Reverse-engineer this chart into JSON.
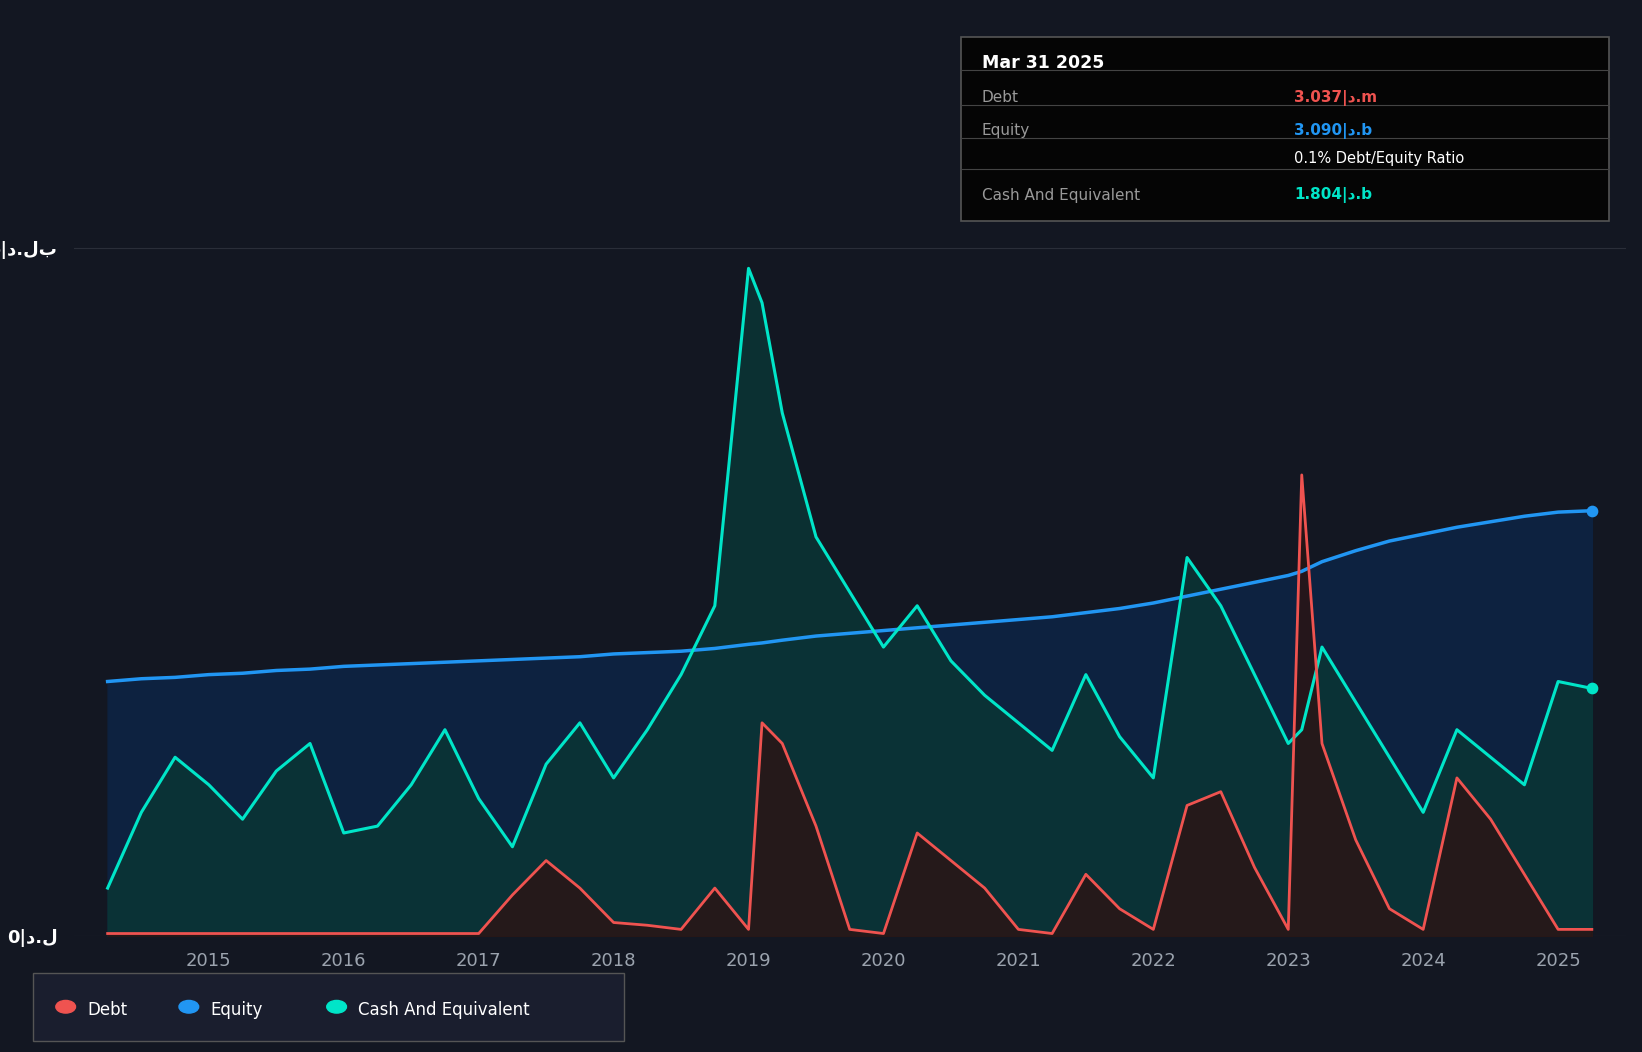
{
  "background_color": "#131722",
  "plot_bg_color": "#131722",
  "grid_color": "#2a2e39",
  "equity_color": "#2196F3",
  "debt_color": "#ef5350",
  "cash_color": "#00e5c8",
  "ylim": [
    0,
    5.5
  ],
  "times": [
    2014.25,
    2014.5,
    2014.75,
    2015.0,
    2015.25,
    2015.5,
    2015.75,
    2016.0,
    2016.25,
    2016.5,
    2016.75,
    2017.0,
    2017.25,
    2017.5,
    2017.75,
    2018.0,
    2018.25,
    2018.5,
    2018.75,
    2019.0,
    2019.1,
    2019.25,
    2019.5,
    2019.75,
    2020.0,
    2020.25,
    2020.5,
    2020.75,
    2021.0,
    2021.25,
    2021.5,
    2021.75,
    2022.0,
    2022.25,
    2022.5,
    2022.75,
    2023.0,
    2023.1,
    2023.25,
    2023.5,
    2023.75,
    2024.0,
    2024.25,
    2024.5,
    2024.75,
    2025.0,
    2025.25
  ],
  "equity": [
    1.85,
    1.87,
    1.88,
    1.9,
    1.91,
    1.93,
    1.94,
    1.96,
    1.97,
    1.98,
    1.99,
    2.0,
    2.01,
    2.02,
    2.03,
    2.05,
    2.06,
    2.07,
    2.09,
    2.12,
    2.13,
    2.15,
    2.18,
    2.2,
    2.22,
    2.24,
    2.26,
    2.28,
    2.3,
    2.32,
    2.35,
    2.38,
    2.42,
    2.47,
    2.52,
    2.57,
    2.62,
    2.65,
    2.72,
    2.8,
    2.87,
    2.92,
    2.97,
    3.01,
    3.05,
    3.08,
    3.09
  ],
  "debt": [
    0.02,
    0.02,
    0.02,
    0.02,
    0.02,
    0.02,
    0.02,
    0.02,
    0.02,
    0.02,
    0.02,
    0.02,
    0.3,
    0.55,
    0.35,
    0.1,
    0.08,
    0.05,
    0.35,
    0.05,
    1.55,
    1.4,
    0.8,
    0.05,
    0.02,
    0.75,
    0.55,
    0.35,
    0.05,
    0.02,
    0.45,
    0.2,
    0.05,
    0.95,
    1.05,
    0.5,
    0.05,
    3.35,
    1.4,
    0.7,
    0.2,
    0.05,
    1.15,
    0.85,
    0.45,
    0.05,
    0.05
  ],
  "cash": [
    0.35,
    0.9,
    1.3,
    1.1,
    0.85,
    1.2,
    1.4,
    0.75,
    0.8,
    1.1,
    1.5,
    1.0,
    0.65,
    1.25,
    1.55,
    1.15,
    1.5,
    1.9,
    2.4,
    4.85,
    4.6,
    3.8,
    2.9,
    2.5,
    2.1,
    2.4,
    2.0,
    1.75,
    1.55,
    1.35,
    1.9,
    1.45,
    1.15,
    2.75,
    2.4,
    1.9,
    1.4,
    1.5,
    2.1,
    1.7,
    1.3,
    0.9,
    1.5,
    1.3,
    1.1,
    1.85,
    1.8
  ]
}
